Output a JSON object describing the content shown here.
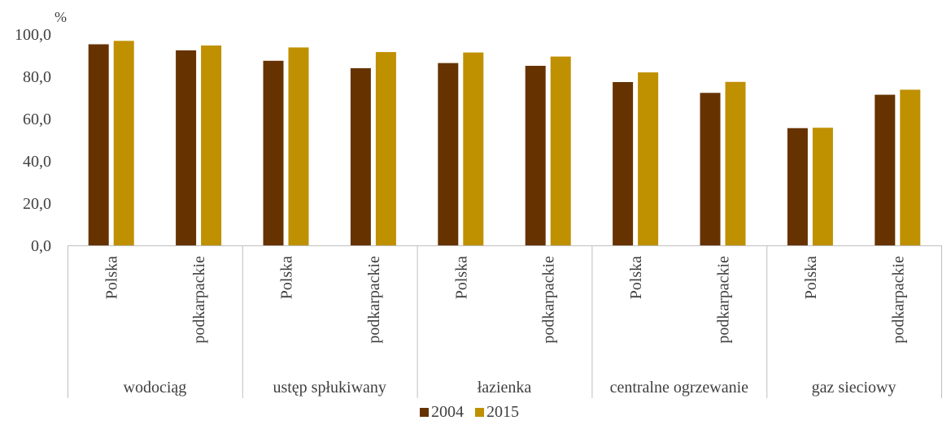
{
  "chart_data": {
    "type": "bar",
    "unit_label": "%",
    "groups": [
      {
        "label": "wodociąg",
        "categories": [
          "Polska",
          "podkarpackie"
        ]
      },
      {
        "label": "ustęp spłukiwany",
        "categories": [
          "Polska",
          "podkarpackie"
        ]
      },
      {
        "label": "łazienka",
        "categories": [
          "Polska",
          "podkarpackie"
        ]
      },
      {
        "label": "centralne ogrzewanie",
        "categories": [
          "Polska",
          "podkarpackie"
        ]
      },
      {
        "label": "gaz sieciowy",
        "categories": [
          "Polska",
          "podkarpackie"
        ]
      }
    ],
    "series": [
      {
        "name": "2004",
        "color": "#663300",
        "values": [
          95.2,
          92.3,
          87.4,
          83.9,
          86.3,
          85.0,
          77.3,
          72.2,
          55.5,
          71.3
        ]
      },
      {
        "name": "2015",
        "color": "#BF9000",
        "values": [
          96.8,
          94.6,
          93.7,
          91.5,
          91.3,
          89.4,
          81.9,
          77.4,
          55.7,
          73.7
        ]
      }
    ],
    "ylim": [
      0,
      100
    ],
    "yticks": [
      "0,0",
      "20,0",
      "40,0",
      "60,0",
      "80,0",
      "100,0"
    ],
    "grid": false,
    "legend_position": "bottom"
  }
}
